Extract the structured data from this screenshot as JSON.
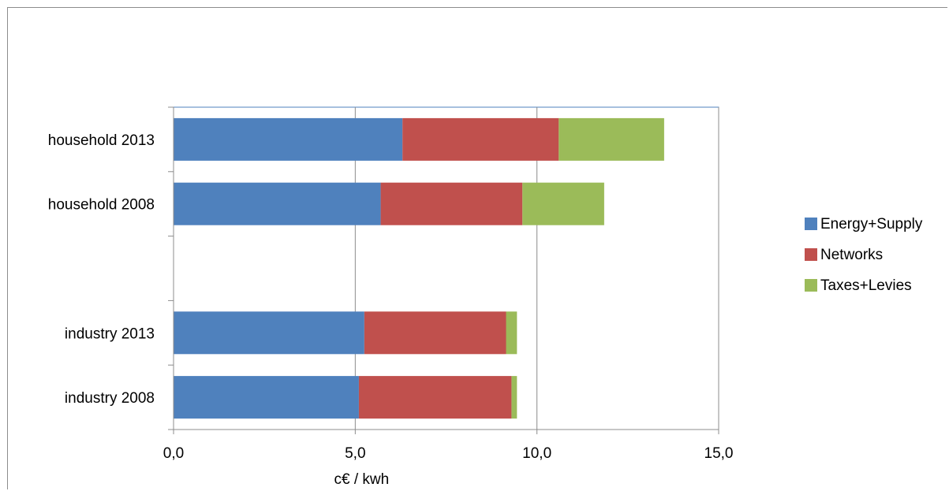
{
  "chart_data": {
    "type": "bar",
    "orientation": "horizontal",
    "stacked": true,
    "categories": [
      "household 2013",
      "household 2008",
      "",
      "industry 2013",
      "industry 2008"
    ],
    "series": [
      {
        "name": "Energy+Supply",
        "color": "#4f81bd",
        "values": [
          6.3,
          5.7,
          null,
          5.25,
          5.1
        ]
      },
      {
        "name": "Networks",
        "color": "#c0504d",
        "values": [
          4.3,
          3.9,
          null,
          3.9,
          4.2
        ]
      },
      {
        "name": "Taxes+Levies",
        "color": "#9bbb59",
        "values": [
          2.9,
          2.25,
          null,
          0.3,
          0.15
        ]
      }
    ],
    "xlabel": "c€ / kwh",
    "ylabel": "",
    "xlim": [
      0,
      15
    ],
    "xticks": [
      "0,0",
      "5,0",
      "10,0",
      "15,0"
    ],
    "grid": "vertical",
    "legend": "right"
  }
}
